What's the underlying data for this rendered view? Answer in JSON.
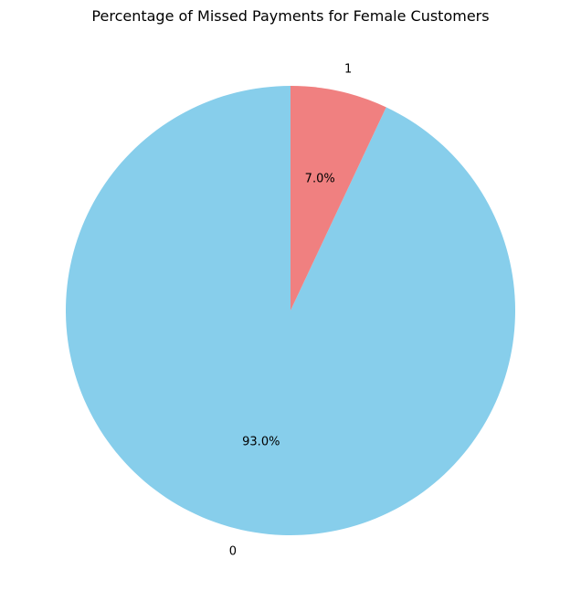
{
  "chart_data": {
    "type": "pie",
    "title": "Percentage of Missed Payments for Female Customers",
    "categories": [
      "0",
      "1"
    ],
    "values": [
      93.0,
      7.0
    ],
    "percent_labels": [
      "93.0%",
      "7.0%"
    ],
    "colors": [
      "#87ceeb",
      "#f08080"
    ],
    "start_angle_deg": 90,
    "direction": "counterclockwise",
    "legend": "none"
  }
}
